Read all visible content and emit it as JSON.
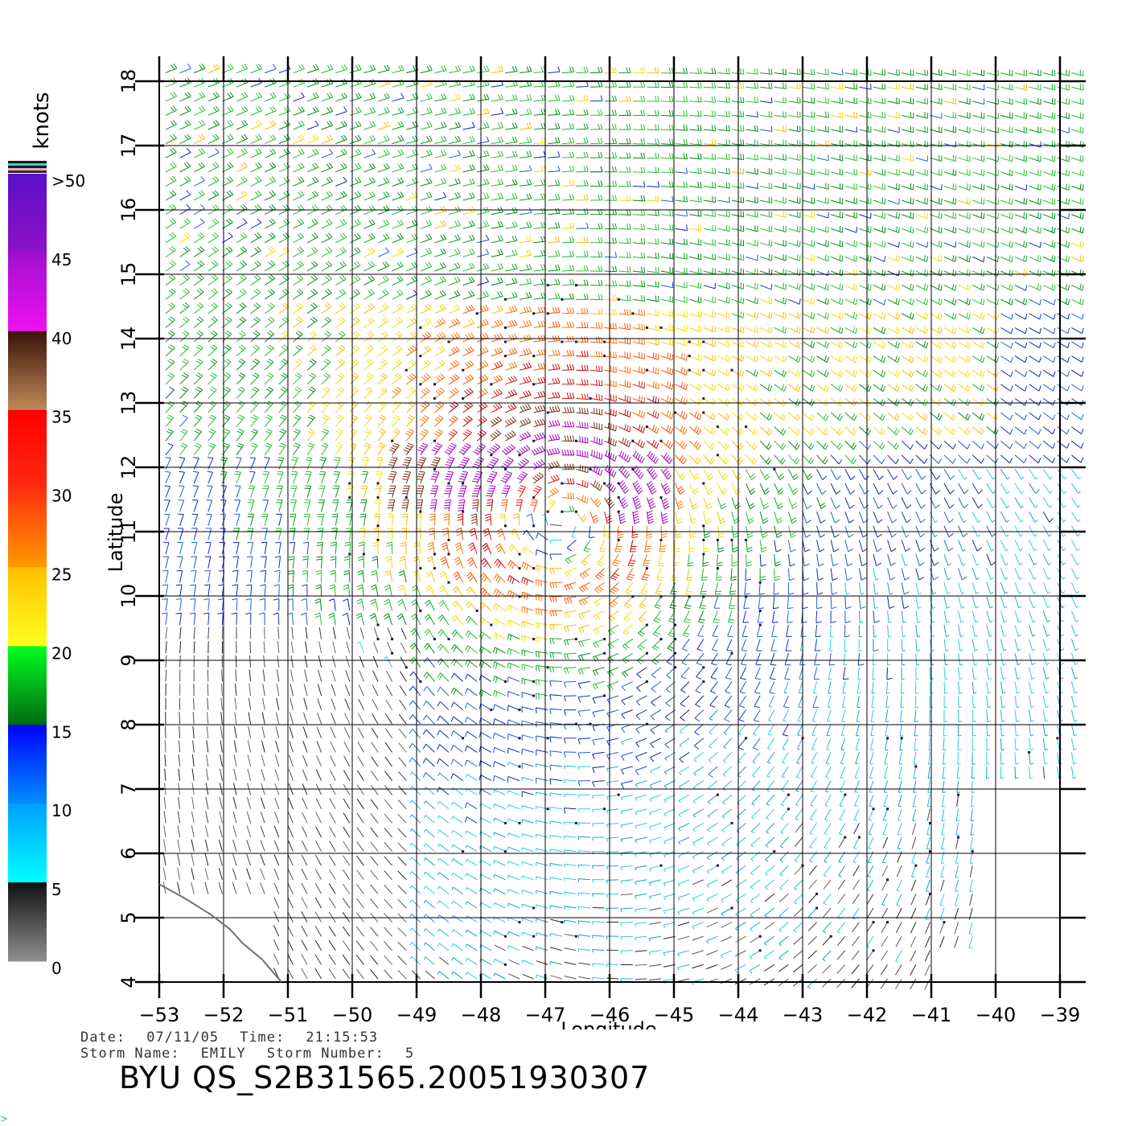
{
  "legend": {
    "unit": "knots",
    "labels": [
      ">50",
      "45",
      "40",
      "35",
      "30",
      "25",
      "20",
      "15",
      "10",
      "5",
      "0"
    ],
    "bands": [
      {
        "from": 50,
        "to": 45,
        "top": "#5a10c8",
        "bottom": "#9010c8"
      },
      {
        "from": 45,
        "to": 40,
        "top": "#a010d0",
        "bottom": "#f010f0"
      },
      {
        "from": 40,
        "to": 35,
        "top": "#3a1208",
        "bottom": "#c08a5a"
      },
      {
        "from": 35,
        "to": 30,
        "top": "#ff0000",
        "bottom": "#ff2a10"
      },
      {
        "from": 30,
        "to": 25,
        "top": "#ff3010",
        "bottom": "#ff9a00"
      },
      {
        "from": 25,
        "to": 20,
        "top": "#ffc000",
        "bottom": "#ffff20"
      },
      {
        "from": 20,
        "to": 15,
        "top": "#00ff20",
        "bottom": "#006a10"
      },
      {
        "from": 15,
        "to": 10,
        "top": "#0000ff",
        "bottom": "#0090ff"
      },
      {
        "from": 10,
        "to": 5,
        "top": "#00a0ff",
        "bottom": "#00ffff"
      },
      {
        "from": 5,
        "to": 0,
        "top": "#101010",
        "bottom": "#909090"
      }
    ]
  },
  "map": {
    "xlabel": "Longitude",
    "ylabel": "Latitude",
    "lon_range": [
      -53,
      -39
    ],
    "lat_range": [
      4,
      18
    ],
    "lon_ticks": [
      "−53",
      "−52",
      "−51",
      "−50",
      "−49",
      "−48",
      "−47",
      "−46",
      "−45",
      "−44",
      "−43",
      "−42",
      "−41",
      "−40",
      "−39"
    ],
    "lat_ticks": [
      "4",
      "5",
      "6",
      "7",
      "8",
      "9",
      "10",
      "11",
      "12",
      "13",
      "14",
      "15",
      "16",
      "17",
      "18"
    ],
    "grid": true,
    "storm_center": {
      "lon": -46.8,
      "lat": 11.3
    },
    "wind_field": "barbs colored by speed; easterly trades in north, cyclonic circulation near storm center, weak winds in southwest",
    "coastline": [
      [
        -53.0,
        5.52
      ],
      [
        -52.6,
        5.3
      ],
      [
        -52.2,
        5.05
      ],
      [
        -51.9,
        4.82
      ],
      [
        -51.7,
        4.6
      ],
      [
        -51.4,
        4.35
      ],
      [
        -51.1,
        4.0
      ]
    ]
  },
  "info": {
    "date_label": "Date:",
    "date": "07/11/05",
    "time_label": "Time:",
    "time": "21:15:53",
    "storm_name_label": "Storm Name:",
    "storm_name": "EMILY",
    "storm_number_label": "Storm Number:",
    "storm_number": "5",
    "product_id": "BYU QS_S2B31565.20051930307"
  },
  "corner_mark": ">"
}
